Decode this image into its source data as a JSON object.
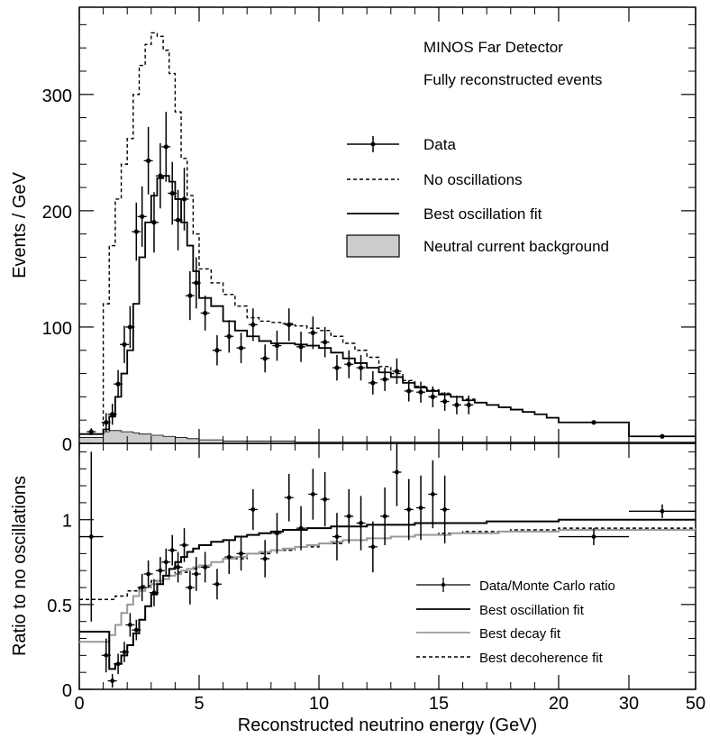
{
  "chart_data": [
    {
      "type": "line",
      "panel": "top",
      "annotations": [
        "MINOS Far Detector",
        "Fully reconstructed events"
      ],
      "ylabel": "Events / GeV",
      "xlabel": "",
      "ylim": [
        0,
        375
      ],
      "y_ticks": [
        0,
        100,
        200,
        300
      ],
      "x_axis_segments": [
        {
          "from": 0,
          "to": 20,
          "scale": "linear"
        },
        {
          "from": 20,
          "to": 50,
          "scale": "compressed"
        }
      ],
      "legend": [
        {
          "label": "Data",
          "style": "points"
        },
        {
          "label": "No oscillations",
          "style": "dashed"
        },
        {
          "label": "Best oscillation fit",
          "style": "solid"
        },
        {
          "label": "Neutral current background",
          "style": "filled-gray"
        }
      ],
      "legend_position": "top-right",
      "bin_edges": [
        0,
        0.5,
        1,
        1.25,
        1.5,
        1.75,
        2,
        2.25,
        2.5,
        2.75,
        3,
        3.25,
        3.5,
        3.75,
        4,
        4.25,
        4.5,
        4.75,
        5,
        5.5,
        6,
        6.5,
        7,
        7.5,
        8,
        8.5,
        9,
        9.5,
        10,
        10.5,
        11,
        11.5,
        12,
        12.5,
        13,
        13.5,
        14,
        14.5,
        15,
        15.5,
        16,
        16.5,
        17,
        17.5,
        18,
        18.5,
        19,
        19.5,
        20,
        30,
        50
      ],
      "series": [
        {
          "name": "No oscillations",
          "style": "dashed",
          "values": [
            8,
            8,
            120,
            170,
            210,
            240,
            262,
            300,
            325,
            343,
            353,
            350,
            338,
            318,
            285,
            245,
            213,
            180,
            150,
            138,
            128,
            118,
            108,
            105,
            104,
            103,
            101,
            99,
            97,
            92,
            86,
            80,
            74,
            66,
            60,
            54,
            49,
            46,
            43,
            40,
            38,
            35,
            33,
            31,
            29,
            27,
            25,
            22,
            18,
            6
          ]
        },
        {
          "name": "Best oscillation fit",
          "style": "solid",
          "values": [
            8,
            8,
            12,
            23,
            40,
            60,
            80,
            120,
            160,
            190,
            213,
            228,
            230,
            225,
            210,
            190,
            170,
            148,
            125,
            118,
            105,
            97,
            92,
            88,
            86,
            86,
            85,
            84,
            82,
            78,
            73,
            69,
            65,
            61,
            57,
            52,
            48,
            45,
            42,
            40,
            37,
            35,
            33,
            31,
            29,
            27,
            25,
            22,
            18,
            6
          ]
        },
        {
          "name": "Neutral current background",
          "style": "filled-gray",
          "values": [
            5,
            5,
            10,
            11,
            11,
            10,
            10,
            9,
            8,
            8,
            7,
            7,
            6,
            6,
            5,
            5,
            4,
            4,
            3,
            3,
            2,
            2,
            2,
            2,
            2,
            2,
            1,
            1,
            1,
            1,
            1,
            1,
            1,
            1,
            1,
            1,
            1,
            1,
            1,
            1,
            1,
            1,
            1,
            1,
            1,
            1,
            1,
            1,
            1,
            1
          ]
        },
        {
          "name": "Data",
          "style": "points",
          "points": [
            {
              "x": 0.5,
              "y": 10,
              "err": 3
            },
            {
              "x": 1.12,
              "y": 18,
              "err": 8
            },
            {
              "x": 1.38,
              "y": 25,
              "err": 9
            },
            {
              "x": 1.62,
              "y": 51,
              "err": 12
            },
            {
              "x": 1.88,
              "y": 85,
              "err": 16
            },
            {
              "x": 2.12,
              "y": 100,
              "err": 18
            },
            {
              "x": 2.38,
              "y": 182,
              "err": 25
            },
            {
              "x": 2.62,
              "y": 195,
              "err": 26
            },
            {
              "x": 2.88,
              "y": 243,
              "err": 29
            },
            {
              "x": 3.12,
              "y": 190,
              "err": 26
            },
            {
              "x": 3.38,
              "y": 230,
              "err": 28
            },
            {
              "x": 3.62,
              "y": 255,
              "err": 30
            },
            {
              "x": 3.88,
              "y": 215,
              "err": 27
            },
            {
              "x": 4.12,
              "y": 192,
              "err": 26
            },
            {
              "x": 4.38,
              "y": 210,
              "err": 27
            },
            {
              "x": 4.62,
              "y": 127,
              "err": 21
            },
            {
              "x": 4.88,
              "y": 138,
              "err": 22
            },
            {
              "x": 5.25,
              "y": 112,
              "err": 15
            },
            {
              "x": 5.75,
              "y": 80,
              "err": 13
            },
            {
              "x": 6.25,
              "y": 92,
              "err": 14
            },
            {
              "x": 6.75,
              "y": 82,
              "err": 13
            },
            {
              "x": 7.25,
              "y": 102,
              "err": 14
            },
            {
              "x": 7.75,
              "y": 73,
              "err": 12
            },
            {
              "x": 8.25,
              "y": 84,
              "err": 13
            },
            {
              "x": 8.75,
              "y": 102,
              "err": 14
            },
            {
              "x": 9.25,
              "y": 83,
              "err": 13
            },
            {
              "x": 9.75,
              "y": 95,
              "err": 14
            },
            {
              "x": 10.25,
              "y": 87,
              "err": 13
            },
            {
              "x": 10.75,
              "y": 65,
              "err": 11
            },
            {
              "x": 11.25,
              "y": 68,
              "err": 12
            },
            {
              "x": 11.75,
              "y": 65,
              "err": 11
            },
            {
              "x": 12.25,
              "y": 52,
              "err": 10
            },
            {
              "x": 12.75,
              "y": 55,
              "err": 10
            },
            {
              "x": 13.25,
              "y": 62,
              "err": 11
            },
            {
              "x": 13.75,
              "y": 45,
              "err": 9
            },
            {
              "x": 14.25,
              "y": 44,
              "err": 9
            },
            {
              "x": 14.75,
              "y": 40,
              "err": 9
            },
            {
              "x": 15.25,
              "y": 36,
              "err": 8
            },
            {
              "x": 15.75,
              "y": 33,
              "err": 8
            },
            {
              "x": 16.25,
              "y": 33,
              "err": 8
            },
            {
              "x": 25,
              "y": 18,
              "err": 1.5
            },
            {
              "x": 40,
              "y": 6,
              "err": 0.6
            }
          ]
        }
      ]
    },
    {
      "type": "line",
      "panel": "bottom",
      "ylabel": "Ratio to no oscillations",
      "xlabel": "Reconstructed neutrino energy (GeV)",
      "ylim": [
        0,
        1.45
      ],
      "y_ticks": [
        0,
        0.5,
        1
      ],
      "y_tick_labels": [
        "0",
        "0.5",
        "1"
      ],
      "x_ticks": [
        0,
        5,
        10,
        15,
        20,
        30,
        50
      ],
      "x_tick_labels": [
        "0",
        "5",
        "10",
        "15",
        "20",
        "30",
        "50"
      ],
      "x_axis_segments": [
        {
          "from": 0,
          "to": 20,
          "scale": "linear"
        },
        {
          "from": 20,
          "to": 50,
          "scale": "compressed"
        }
      ],
      "legend": [
        {
          "label": "Data/Monte Carlo ratio",
          "style": "points"
        },
        {
          "label": "Best oscillation fit",
          "style": "solid"
        },
        {
          "label": "Best decay fit",
          "style": "gray"
        },
        {
          "label": "Best decoherence fit",
          "style": "dashed"
        }
      ],
      "legend_position": "bottom-right",
      "series": [
        {
          "name": "Best oscillation fit",
          "style": "solid",
          "x": [
            0,
            1,
            1.25,
            1.5,
            1.75,
            2,
            2.25,
            2.5,
            2.75,
            3,
            3.25,
            3.5,
            3.75,
            4,
            4.25,
            4.5,
            4.75,
            5,
            5.5,
            6,
            6.5,
            7,
            7.5,
            8,
            8.5,
            9,
            9.5,
            10,
            10.5,
            11,
            11.5,
            12,
            12.5,
            13,
            13.5,
            14,
            14.5,
            15,
            15.5,
            16,
            16.5,
            17,
            17.5,
            18,
            18.5,
            19,
            19.5,
            20,
            30,
            50
          ],
          "y": [
            0.34,
            0.34,
            0.12,
            0.15,
            0.2,
            0.26,
            0.33,
            0.41,
            0.49,
            0.56,
            0.62,
            0.67,
            0.71,
            0.75,
            0.78,
            0.81,
            0.83,
            0.85,
            0.87,
            0.88,
            0.9,
            0.91,
            0.92,
            0.93,
            0.94,
            0.94,
            0.95,
            0.95,
            0.96,
            0.96,
            0.96,
            0.97,
            0.97,
            0.97,
            0.97,
            0.98,
            0.98,
            0.98,
            0.98,
            0.98,
            0.98,
            0.99,
            0.99,
            0.99,
            0.99,
            0.99,
            0.99,
            1.0,
            1.0,
            1.0
          ]
        },
        {
          "name": "Best decay fit",
          "style": "gray",
          "x": [
            0,
            1,
            1.25,
            1.5,
            1.75,
            2,
            2.25,
            2.5,
            2.75,
            3,
            3.25,
            3.5,
            3.75,
            4,
            4.25,
            4.5,
            4.75,
            5,
            5.5,
            6,
            6.5,
            7,
            7.5,
            8,
            8.5,
            9,
            9.5,
            10,
            10.5,
            11,
            11.5,
            12,
            12.5,
            13,
            13.5,
            14,
            14.5,
            15,
            15.5,
            16,
            16.5,
            17,
            17.5,
            18,
            18.5,
            19,
            19.5,
            20,
            30,
            50
          ],
          "y": [
            0.28,
            0.28,
            0.32,
            0.38,
            0.45,
            0.5,
            0.55,
            0.58,
            0.6,
            0.62,
            0.64,
            0.65,
            0.67,
            0.68,
            0.7,
            0.71,
            0.72,
            0.73,
            0.75,
            0.77,
            0.78,
            0.8,
            0.81,
            0.82,
            0.83,
            0.84,
            0.85,
            0.86,
            0.87,
            0.88,
            0.88,
            0.89,
            0.89,
            0.9,
            0.9,
            0.91,
            0.91,
            0.91,
            0.92,
            0.92,
            0.92,
            0.92,
            0.93,
            0.93,
            0.93,
            0.93,
            0.93,
            0.94,
            0.94,
            0.95
          ]
        },
        {
          "name": "Best decoherence fit",
          "style": "dashed",
          "x": [
            0,
            1,
            1.5,
            2,
            2.5,
            3,
            3.5,
            4,
            4.5,
            5,
            5.5,
            6,
            7,
            8,
            9,
            10,
            11,
            12,
            13,
            14,
            15,
            16,
            17,
            18,
            19,
            20,
            30,
            50
          ],
          "y": [
            0.53,
            0.53,
            0.55,
            0.58,
            0.61,
            0.64,
            0.67,
            0.69,
            0.71,
            0.73,
            0.75,
            0.77,
            0.8,
            0.82,
            0.84,
            0.86,
            0.88,
            0.89,
            0.9,
            0.91,
            0.92,
            0.93,
            0.93,
            0.94,
            0.94,
            0.95,
            0.95,
            0.95
          ]
        },
        {
          "name": "Data/Monte Carlo ratio",
          "style": "points",
          "points": [
            {
              "x": 0.5,
              "y": 0.9,
              "err": 0.5,
              "xerr": 0.5
            },
            {
              "x": 1.12,
              "y": 0.2,
              "err": 0.1
            },
            {
              "x": 1.38,
              "y": 0.05,
              "err": 0.04
            },
            {
              "x": 1.62,
              "y": 0.15,
              "err": 0.06
            },
            {
              "x": 1.88,
              "y": 0.22,
              "err": 0.06
            },
            {
              "x": 2.12,
              "y": 0.38,
              "err": 0.07
            },
            {
              "x": 2.38,
              "y": 0.35,
              "err": 0.06
            },
            {
              "x": 2.62,
              "y": 0.6,
              "err": 0.08
            },
            {
              "x": 2.88,
              "y": 0.68,
              "err": 0.08
            },
            {
              "x": 3.12,
              "y": 0.57,
              "err": 0.08
            },
            {
              "x": 3.38,
              "y": 0.7,
              "err": 0.08
            },
            {
              "x": 3.62,
              "y": 0.75,
              "err": 0.08
            },
            {
              "x": 3.88,
              "y": 0.82,
              "err": 0.09
            },
            {
              "x": 4.12,
              "y": 0.72,
              "err": 0.09
            },
            {
              "x": 4.38,
              "y": 0.85,
              "err": 0.1
            },
            {
              "x": 4.62,
              "y": 0.6,
              "err": 0.1
            },
            {
              "x": 4.88,
              "y": 0.68,
              "err": 0.1
            },
            {
              "x": 5.25,
              "y": 0.72,
              "err": 0.09
            },
            {
              "x": 5.75,
              "y": 0.62,
              "err": 0.09
            },
            {
              "x": 6.25,
              "y": 0.78,
              "err": 0.1
            },
            {
              "x": 6.75,
              "y": 0.8,
              "err": 0.1
            },
            {
              "x": 7.25,
              "y": 1.06,
              "err": 0.12
            },
            {
              "x": 7.75,
              "y": 0.77,
              "err": 0.11
            },
            {
              "x": 8.25,
              "y": 0.92,
              "err": 0.12
            },
            {
              "x": 8.75,
              "y": 1.13,
              "err": 0.14
            },
            {
              "x": 9.25,
              "y": 0.95,
              "err": 0.13
            },
            {
              "x": 9.75,
              "y": 1.15,
              "err": 0.15
            },
            {
              "x": 10.25,
              "y": 1.12,
              "err": 0.16
            },
            {
              "x": 10.75,
              "y": 0.9,
              "err": 0.14
            },
            {
              "x": 11.25,
              "y": 1.02,
              "err": 0.16
            },
            {
              "x": 11.75,
              "y": 0.98,
              "err": 0.16
            },
            {
              "x": 12.25,
              "y": 0.84,
              "err": 0.15
            },
            {
              "x": 12.75,
              "y": 1.02,
              "err": 0.17
            },
            {
              "x": 13.25,
              "y": 1.28,
              "err": 0.2
            },
            {
              "x": 13.75,
              "y": 1.06,
              "err": 0.18
            },
            {
              "x": 14.25,
              "y": 1.07,
              "err": 0.19
            },
            {
              "x": 14.75,
              "y": 1.15,
              "err": 0.2
            },
            {
              "x": 15.25,
              "y": 1.06,
              "err": 0.2
            },
            {
              "x": 25,
              "y": 0.9,
              "err": 0.05,
              "xerr": 5
            },
            {
              "x": 40,
              "y": 1.05,
              "err": 0.04,
              "xerr": 10
            }
          ]
        }
      ]
    }
  ]
}
